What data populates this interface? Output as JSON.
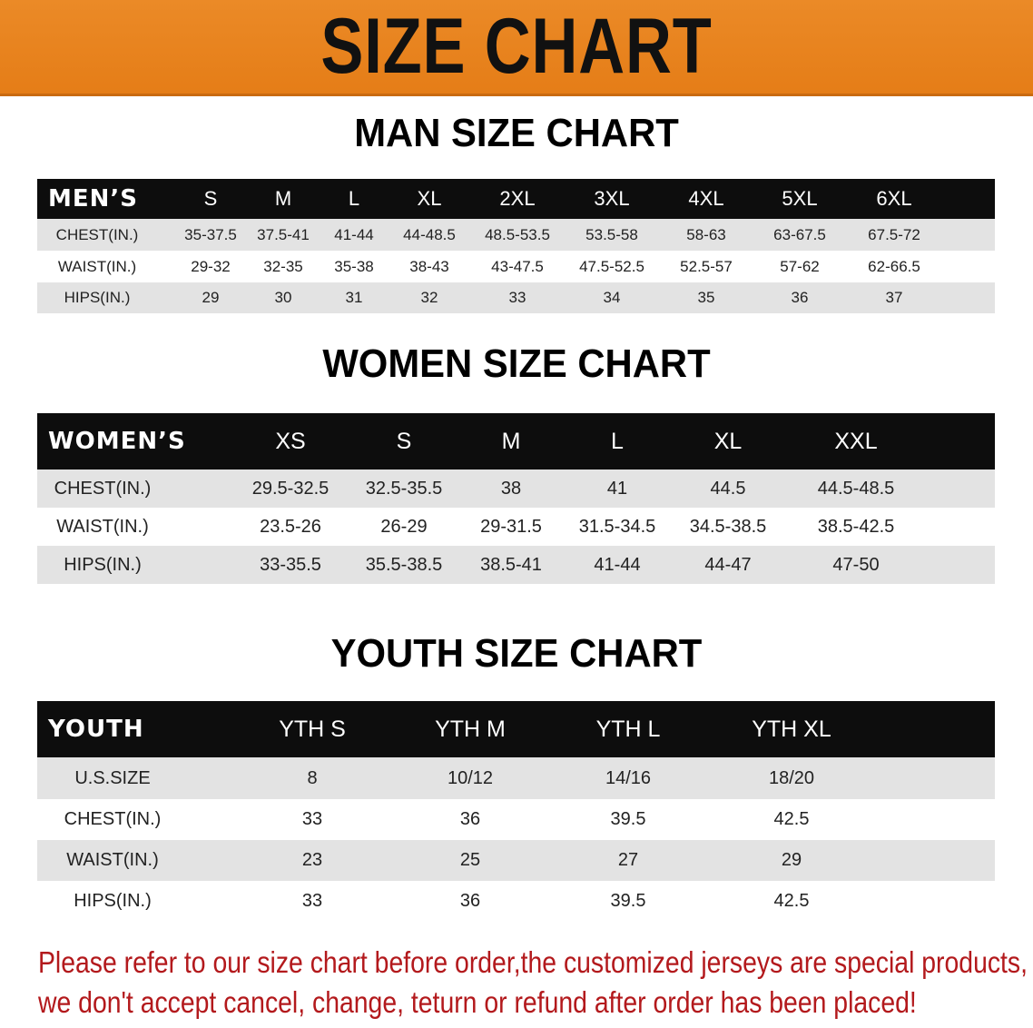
{
  "banner": {
    "title": "SIZE CHART",
    "color": "#e8821e"
  },
  "men": {
    "title": "MAN SIZE CHART",
    "header": [
      "MEN’S",
      "S",
      "M",
      "L",
      "XL",
      "2XL",
      "3XL",
      "4XL",
      "5XL",
      "6XL"
    ],
    "rows": [
      [
        "CHEST(IN.)",
        "35-37.5",
        "37.5-41",
        "41-44",
        "44-48.5",
        "48.5-53.5",
        "53.5-58",
        "58-63",
        "63-67.5",
        "67.5-72"
      ],
      [
        "WAIST(IN.)",
        "29-32",
        "32-35",
        "35-38",
        "38-43",
        "43-47.5",
        "47.5-52.5",
        "52.5-57",
        "57-62",
        "62-66.5"
      ],
      [
        "HIPS(IN.)",
        "29",
        "30",
        "31",
        "32",
        "33",
        "34",
        "35",
        "36",
        "37"
      ]
    ]
  },
  "women": {
    "title": "WOMEN SIZE CHART",
    "header": [
      "WOMEN’S",
      "XS",
      "S",
      "M",
      "L",
      "XL",
      "XXL"
    ],
    "rows": [
      [
        "CHEST(IN.)",
        "29.5-32.5",
        "32.5-35.5",
        "38",
        "41",
        "44.5",
        "44.5-48.5"
      ],
      [
        "WAIST(IN.)",
        "23.5-26",
        "26-29",
        "29-31.5",
        "31.5-34.5",
        "34.5-38.5",
        "38.5-42.5"
      ],
      [
        "HIPS(IN.)",
        "33-35.5",
        "35.5-38.5",
        "38.5-41",
        "41-44",
        "44-47",
        "47-50"
      ]
    ]
  },
  "youth": {
    "title": "YOUTH SIZE CHART",
    "header": [
      "YOUTH",
      "YTH S",
      "YTH M",
      "YTH L",
      "YTH XL"
    ],
    "rows": [
      [
        "U.S.SIZE",
        "8",
        "10/12",
        "14/16",
        "18/20"
      ],
      [
        "CHEST(IN.)",
        "33",
        "36",
        "39.5",
        "42.5"
      ],
      [
        "WAIST(IN.)",
        "23",
        "25",
        "27",
        "29"
      ],
      [
        "HIPS(IN.)",
        "33",
        "36",
        "39.5",
        "42.5"
      ]
    ]
  },
  "note": {
    "line1": "Please refer to our size chart before order,the customized jerseys are special products,",
    "line2": "we don't accept cancel, change, teturn or refund after order has been placed!",
    "color": "#b3191c"
  }
}
